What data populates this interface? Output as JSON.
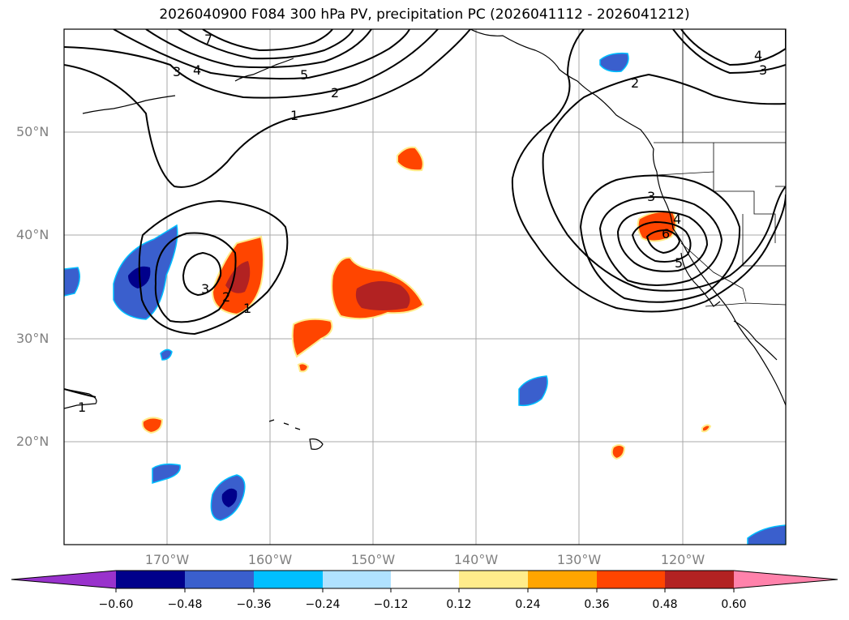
{
  "title": "2026040900 F084 300 hPa PV, precipitation PC (2026041112 - 2026041212)",
  "lat_labels": [
    "50°N",
    "40°N",
    "30°N",
    "20°N"
  ],
  "lon_labels": [
    "170°W",
    "160°W",
    "150°W",
    "140°W",
    "130°W",
    "120°W"
  ],
  "colorbar": {
    "ticks": [
      "−0.60",
      "−0.48",
      "−0.36",
      "−0.24",
      "−0.12",
      "0.12",
      "0.24",
      "0.36",
      "0.48",
      "0.60"
    ],
    "colors": [
      "#9932cc",
      "#00008b",
      "#3a5fcd",
      "#00bfff",
      "#b0e2ff",
      "#ffffff",
      "#ffec8b",
      "#ffa500",
      "#ff4500",
      "#b22222",
      "#ff82ab"
    ]
  },
  "contour_labels": [
    "7",
    "3",
    "4",
    "5",
    "2",
    "1",
    "3",
    "2",
    "1",
    "2",
    "3",
    "4",
    "5",
    "6",
    "4",
    "3",
    "1"
  ]
}
